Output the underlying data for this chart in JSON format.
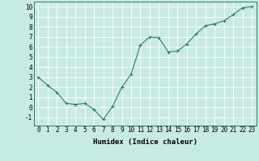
{
  "x": [
    0,
    1,
    2,
    3,
    4,
    5,
    6,
    7,
    8,
    9,
    10,
    11,
    12,
    13,
    14,
    15,
    16,
    17,
    18,
    19,
    20,
    21,
    22,
    23
  ],
  "y": [
    3,
    2.2,
    1.5,
    0.4,
    0.3,
    0.4,
    -0.2,
    -1.2,
    0.1,
    2.0,
    3.3,
    6.2,
    7.0,
    6.9,
    5.5,
    5.6,
    6.3,
    7.3,
    8.1,
    8.3,
    8.6,
    9.2,
    9.9,
    10.0
  ],
  "line_color": "#2e7d6e",
  "marker": "+",
  "marker_size": 3,
  "bg_color": "#c8eae4",
  "grid_color": "#ffffff",
  "grid_minor_color": "#daf0ea",
  "xlabel": "Humidex (Indice chaleur)",
  "ylim": [
    -1.8,
    10.5
  ],
  "xlim": [
    -0.5,
    23.5
  ],
  "yticks": [
    -1,
    0,
    1,
    2,
    3,
    4,
    5,
    6,
    7,
    8,
    9,
    10
  ],
  "xticks": [
    0,
    1,
    2,
    3,
    4,
    5,
    6,
    7,
    8,
    9,
    10,
    11,
    12,
    13,
    14,
    15,
    16,
    17,
    18,
    19,
    20,
    21,
    22,
    23
  ],
  "xlabel_fontsize": 6.5,
  "tick_fontsize": 5.5
}
